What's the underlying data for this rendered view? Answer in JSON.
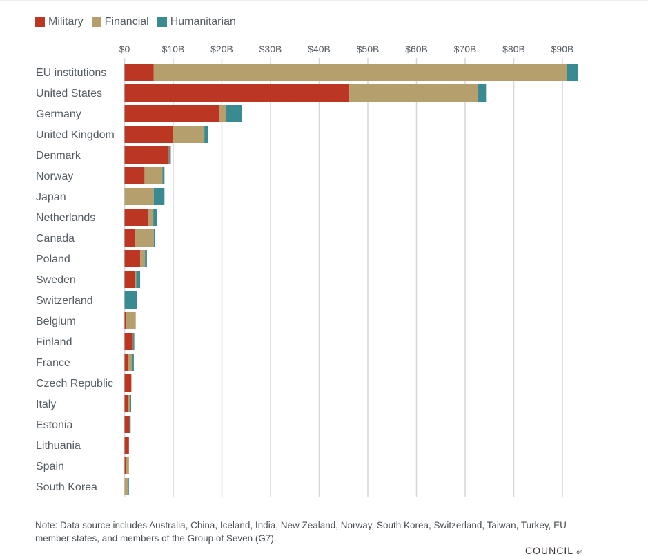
{
  "chart_data": {
    "type": "bar",
    "orientation": "horizontal",
    "stacked": true,
    "categories": [
      "EU institutions",
      "United States",
      "Germany",
      "United Kingdom",
      "Denmark",
      "Norway",
      "Japan",
      "Netherlands",
      "Canada",
      "Poland",
      "Sweden",
      "Switzerland",
      "Belgium",
      "Finland",
      "France",
      "Czech Republic",
      "Italy",
      "Estonia",
      "Lithuania",
      "Spain",
      "South Korea"
    ],
    "series": [
      {
        "name": "Military",
        "color": "#bc3624",
        "values": [
          6.0,
          46.2,
          19.4,
          10.0,
          9.1,
          4.1,
          0,
          4.8,
          2.2,
          3.2,
          2.1,
          0,
          0.3,
          1.7,
          0.7,
          1.4,
          0.7,
          1.0,
          0.9,
          0.3,
          0
        ]
      },
      {
        "name": "Financial",
        "color": "#b59f6c",
        "values": [
          84.9,
          26.5,
          1.4,
          6.4,
          0.1,
          3.7,
          6.0,
          1.1,
          3.8,
          1.0,
          0.3,
          0,
          2.0,
          0.1,
          0.8,
          0,
          0.4,
          0,
          0,
          0.6,
          0.65
        ]
      },
      {
        "name": "Humanitarian",
        "color": "#3a8a91",
        "values": [
          2.3,
          1.6,
          3.3,
          0.7,
          0.3,
          0.4,
          2.2,
          0.8,
          0.3,
          0.4,
          0.8,
          2.5,
          0,
          0.2,
          0.4,
          0,
          0.25,
          0.25,
          0,
          0,
          0.25
        ]
      }
    ],
    "xticks": [
      "$0",
      "$10B",
      "$20B",
      "$30B",
      "$40B",
      "$50B",
      "$60B",
      "$70B",
      "$80B",
      "$90B"
    ],
    "xlim": [
      0,
      93
    ],
    "xtick_step": 10,
    "grid": true,
    "legend_position": "top-left",
    "units": "USD billions"
  },
  "note": "Note: Data source includes Australia, China, Iceland, India, New Zealand, Norway, South Korea, Switzerland, Taiwan, Turkey, EU member states, and members of the Group of Seven (G7).",
  "logo": {
    "text": "COUNCIL",
    "suffix": "on"
  }
}
